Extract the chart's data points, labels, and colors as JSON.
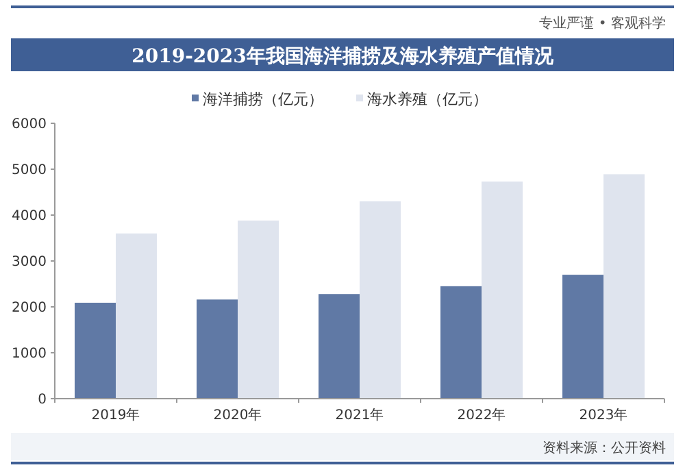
{
  "chart_data": {
    "type": "bar",
    "title": "2019-2023年我国海洋捕捞及海水养殖产值情况",
    "categories": [
      "2019年",
      "2020年",
      "2021年",
      "2022年",
      "2023年"
    ],
    "series": [
      {
        "name": "海洋捕捞（亿元）",
        "color": "#6079a5",
        "values": [
          2090,
          2160,
          2280,
          2450,
          2700
        ]
      },
      {
        "name": "海水养殖（亿元）",
        "color": "#dfe4ee",
        "values": [
          3600,
          3880,
          4300,
          4730,
          4890
        ]
      }
    ],
    "ylim": [
      0,
      6000
    ],
    "yticks": [
      0,
      1000,
      2000,
      3000,
      4000,
      5000,
      6000
    ],
    "legend": "top",
    "annotations": [
      "专业严谨 • 客观科学",
      "资料来源：公开资料"
    ]
  }
}
